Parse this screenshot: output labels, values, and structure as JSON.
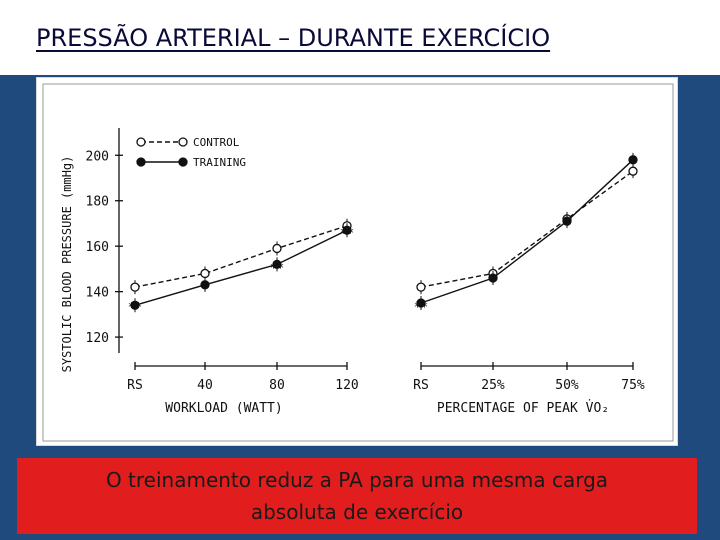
{
  "slide": {
    "title": "PRESSÃO ARTERIAL – DURANTE EXERCÍCIO",
    "caption_line1": "O treinamento reduz a PA  para uma mesma carga",
    "caption_line2": "absoluta de exercício",
    "colors": {
      "background": "#1f4a7e",
      "caption_bg": "#e21d1d",
      "title_text": "#0a0a38"
    }
  },
  "chart_data": [
    {
      "type": "line",
      "ylabel": "SYSTOLIC BLOOD PRESSURE (mmHg)",
      "xlabel": "WORKLOAD (WATT)",
      "categories": [
        "RS",
        "40",
        "80",
        "120"
      ],
      "yticks": [
        120,
        140,
        160,
        180,
        200
      ],
      "ylim": [
        113,
        212
      ],
      "legend": [
        "CONTROL",
        "TRAINING"
      ],
      "legend_position": "top-left",
      "series": [
        {
          "name": "CONTROL",
          "style": "dashed-open-circle",
          "values": [
            142,
            148,
            159,
            169
          ]
        },
        {
          "name": "TRAINING",
          "style": "solid-filled-circle",
          "values": [
            134,
            143,
            152,
            167
          ]
        }
      ],
      "annotations": [
        "**",
        "*",
        "**",
        "**"
      ]
    },
    {
      "type": "line",
      "xlabel": "PERCENTAGE OF PEAK V̇O₂",
      "categories": [
        "RS",
        "25%",
        "50%",
        "75%"
      ],
      "ylim": [
        113,
        212
      ],
      "series": [
        {
          "name": "CONTROL",
          "style": "dashed-open-circle",
          "values": [
            142,
            148,
            172,
            193
          ]
        },
        {
          "name": "TRAINING",
          "style": "solid-filled-circle",
          "values": [
            135,
            146,
            171,
            198
          ]
        }
      ],
      "annotations": [
        "**"
      ]
    }
  ]
}
